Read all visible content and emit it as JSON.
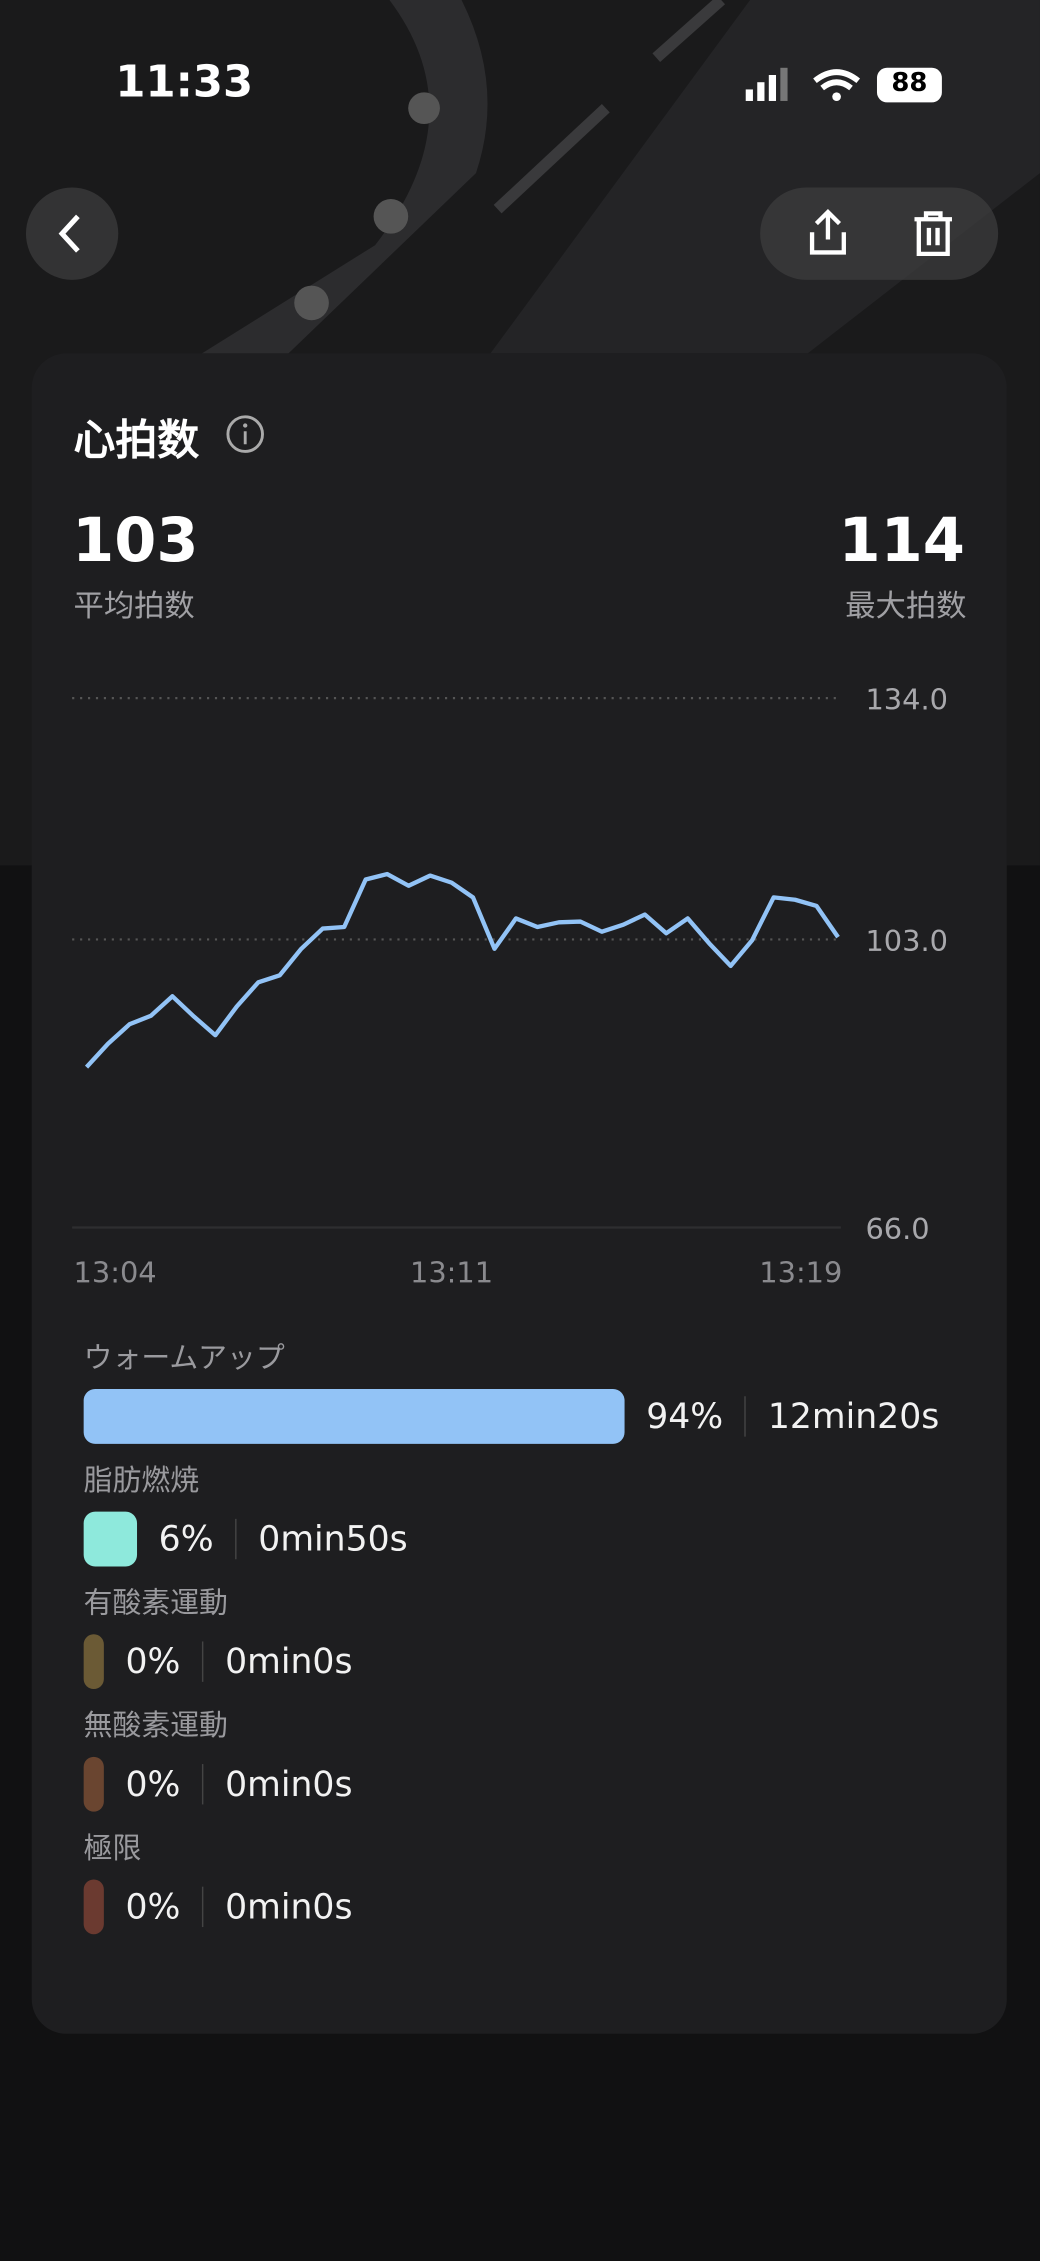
{
  "status_bar": {
    "time": "11:33",
    "battery": "88"
  },
  "card": {
    "title": "心拍数",
    "stats": [
      {
        "value": "103",
        "label": "平均拍数"
      },
      {
        "value": "114",
        "label": "最大拍数"
      }
    ],
    "zones": [
      {
        "name": "ウォームアップ",
        "percent": "94%",
        "duration": "12min20s",
        "color": "#92c3f6"
      },
      {
        "name": "脂肪燃焼",
        "percent": "6%",
        "duration": "0min50s",
        "color": "#8ee9dc"
      },
      {
        "name": "有酸素運動",
        "percent": "0%",
        "duration": "0min0s",
        "color": "#6b5a35"
      },
      {
        "name": "無酸素運動",
        "percent": "0%",
        "duration": "0min0s",
        "color": "#6a4530"
      },
      {
        "name": "極限",
        "percent": "0%",
        "duration": "0min0s",
        "color": "#6b3a30"
      }
    ]
  },
  "chart_data": {
    "type": "line",
    "color": "#92c3f6",
    "categories": [
      "13:04",
      null,
      null,
      null,
      null,
      null,
      null,
      null,
      null,
      null,
      null,
      null,
      null,
      null,
      null,
      null,
      null,
      "13:11",
      null,
      null,
      null,
      null,
      null,
      null,
      null,
      null,
      null,
      null,
      null,
      null,
      null,
      null,
      null,
      null,
      null,
      "13:19"
    ],
    "values": [
      86.6,
      89.6,
      92.1,
      93.2,
      95.7,
      93.1,
      90.7,
      94.4,
      97.5,
      98.4,
      101.8,
      104.4,
      104.6,
      110.7,
      111.4,
      109.9,
      111.2,
      110.3,
      108.4,
      101.8,
      105.7,
      104.6,
      105.2,
      105.3,
      104.0,
      104.9,
      106.2,
      103.8,
      105.7,
      102.5,
      99.6,
      102.9,
      108.4,
      108.1,
      107.3,
      103.3
    ],
    "ylim": [
      66,
      134
    ],
    "yticks": [
      {
        "value": 66,
        "label": "66.0"
      },
      {
        "value": 103,
        "label": "103.0"
      },
      {
        "value": 134,
        "label": "134.0"
      }
    ]
  }
}
